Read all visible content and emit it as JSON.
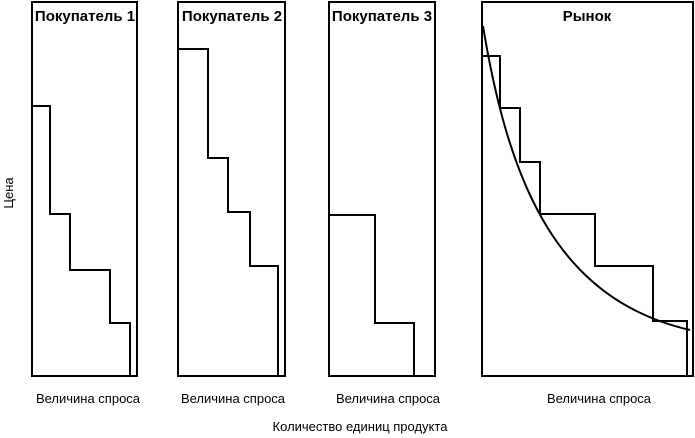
{
  "diagram": {
    "y_axis_label": "Цена",
    "bottom_caption": "Количество единиц продукта",
    "panels": [
      {
        "id": "buyer-1",
        "title": "Покупатель 1",
        "x_label": "Величина спроса"
      },
      {
        "id": "buyer-2",
        "title": "Покупатель 2",
        "x_label": "Величина спроса"
      },
      {
        "id": "buyer-3",
        "title": "Покупатель 3",
        "x_label": "Величина спроса"
      },
      {
        "id": "market",
        "title": "Рынок",
        "x_label": "Величина спроса"
      }
    ]
  }
}
